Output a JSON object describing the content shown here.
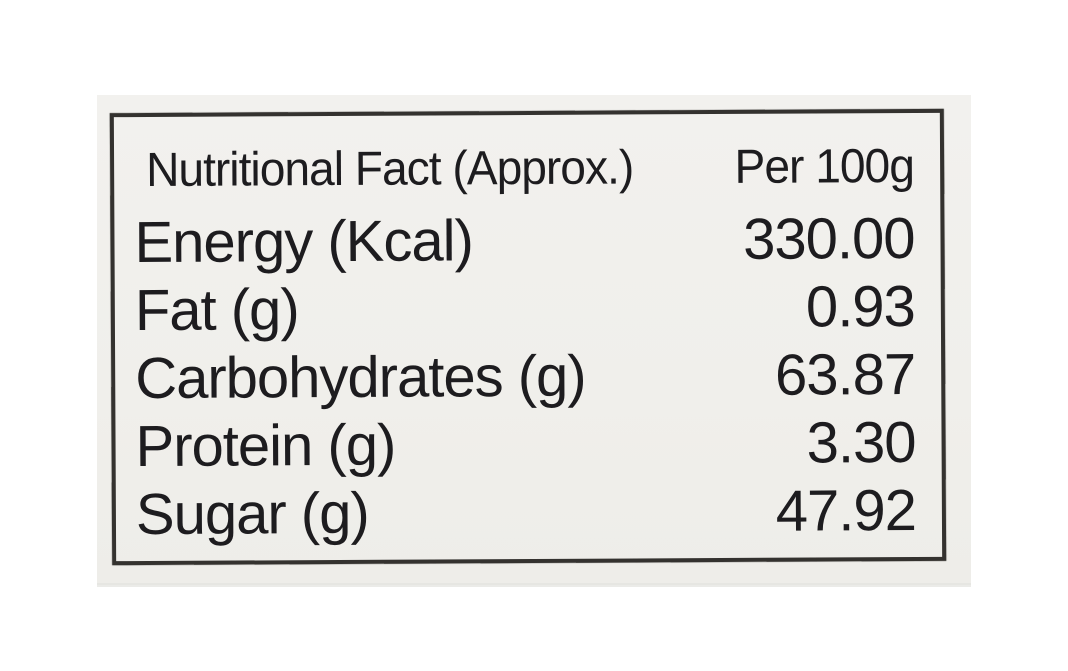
{
  "label": {
    "title": "Nutritional Fact (Approx.)",
    "unit_header": "Per 100g",
    "rows": [
      {
        "name": "Energy (Kcal)",
        "value": "330.00"
      },
      {
        "name": "Fat (g)",
        "value": "0.93"
      },
      {
        "name": "Carbohydrates (g)",
        "value": "63.87"
      },
      {
        "name": "Protein (g)",
        "value": "3.30"
      },
      {
        "name": "Sugar (g)",
        "value": "47.92"
      }
    ],
    "colors": {
      "text": "#1d1c1f",
      "border": "#34322f",
      "paper": "#f1f0ec",
      "background": "#ffffff"
    }
  }
}
